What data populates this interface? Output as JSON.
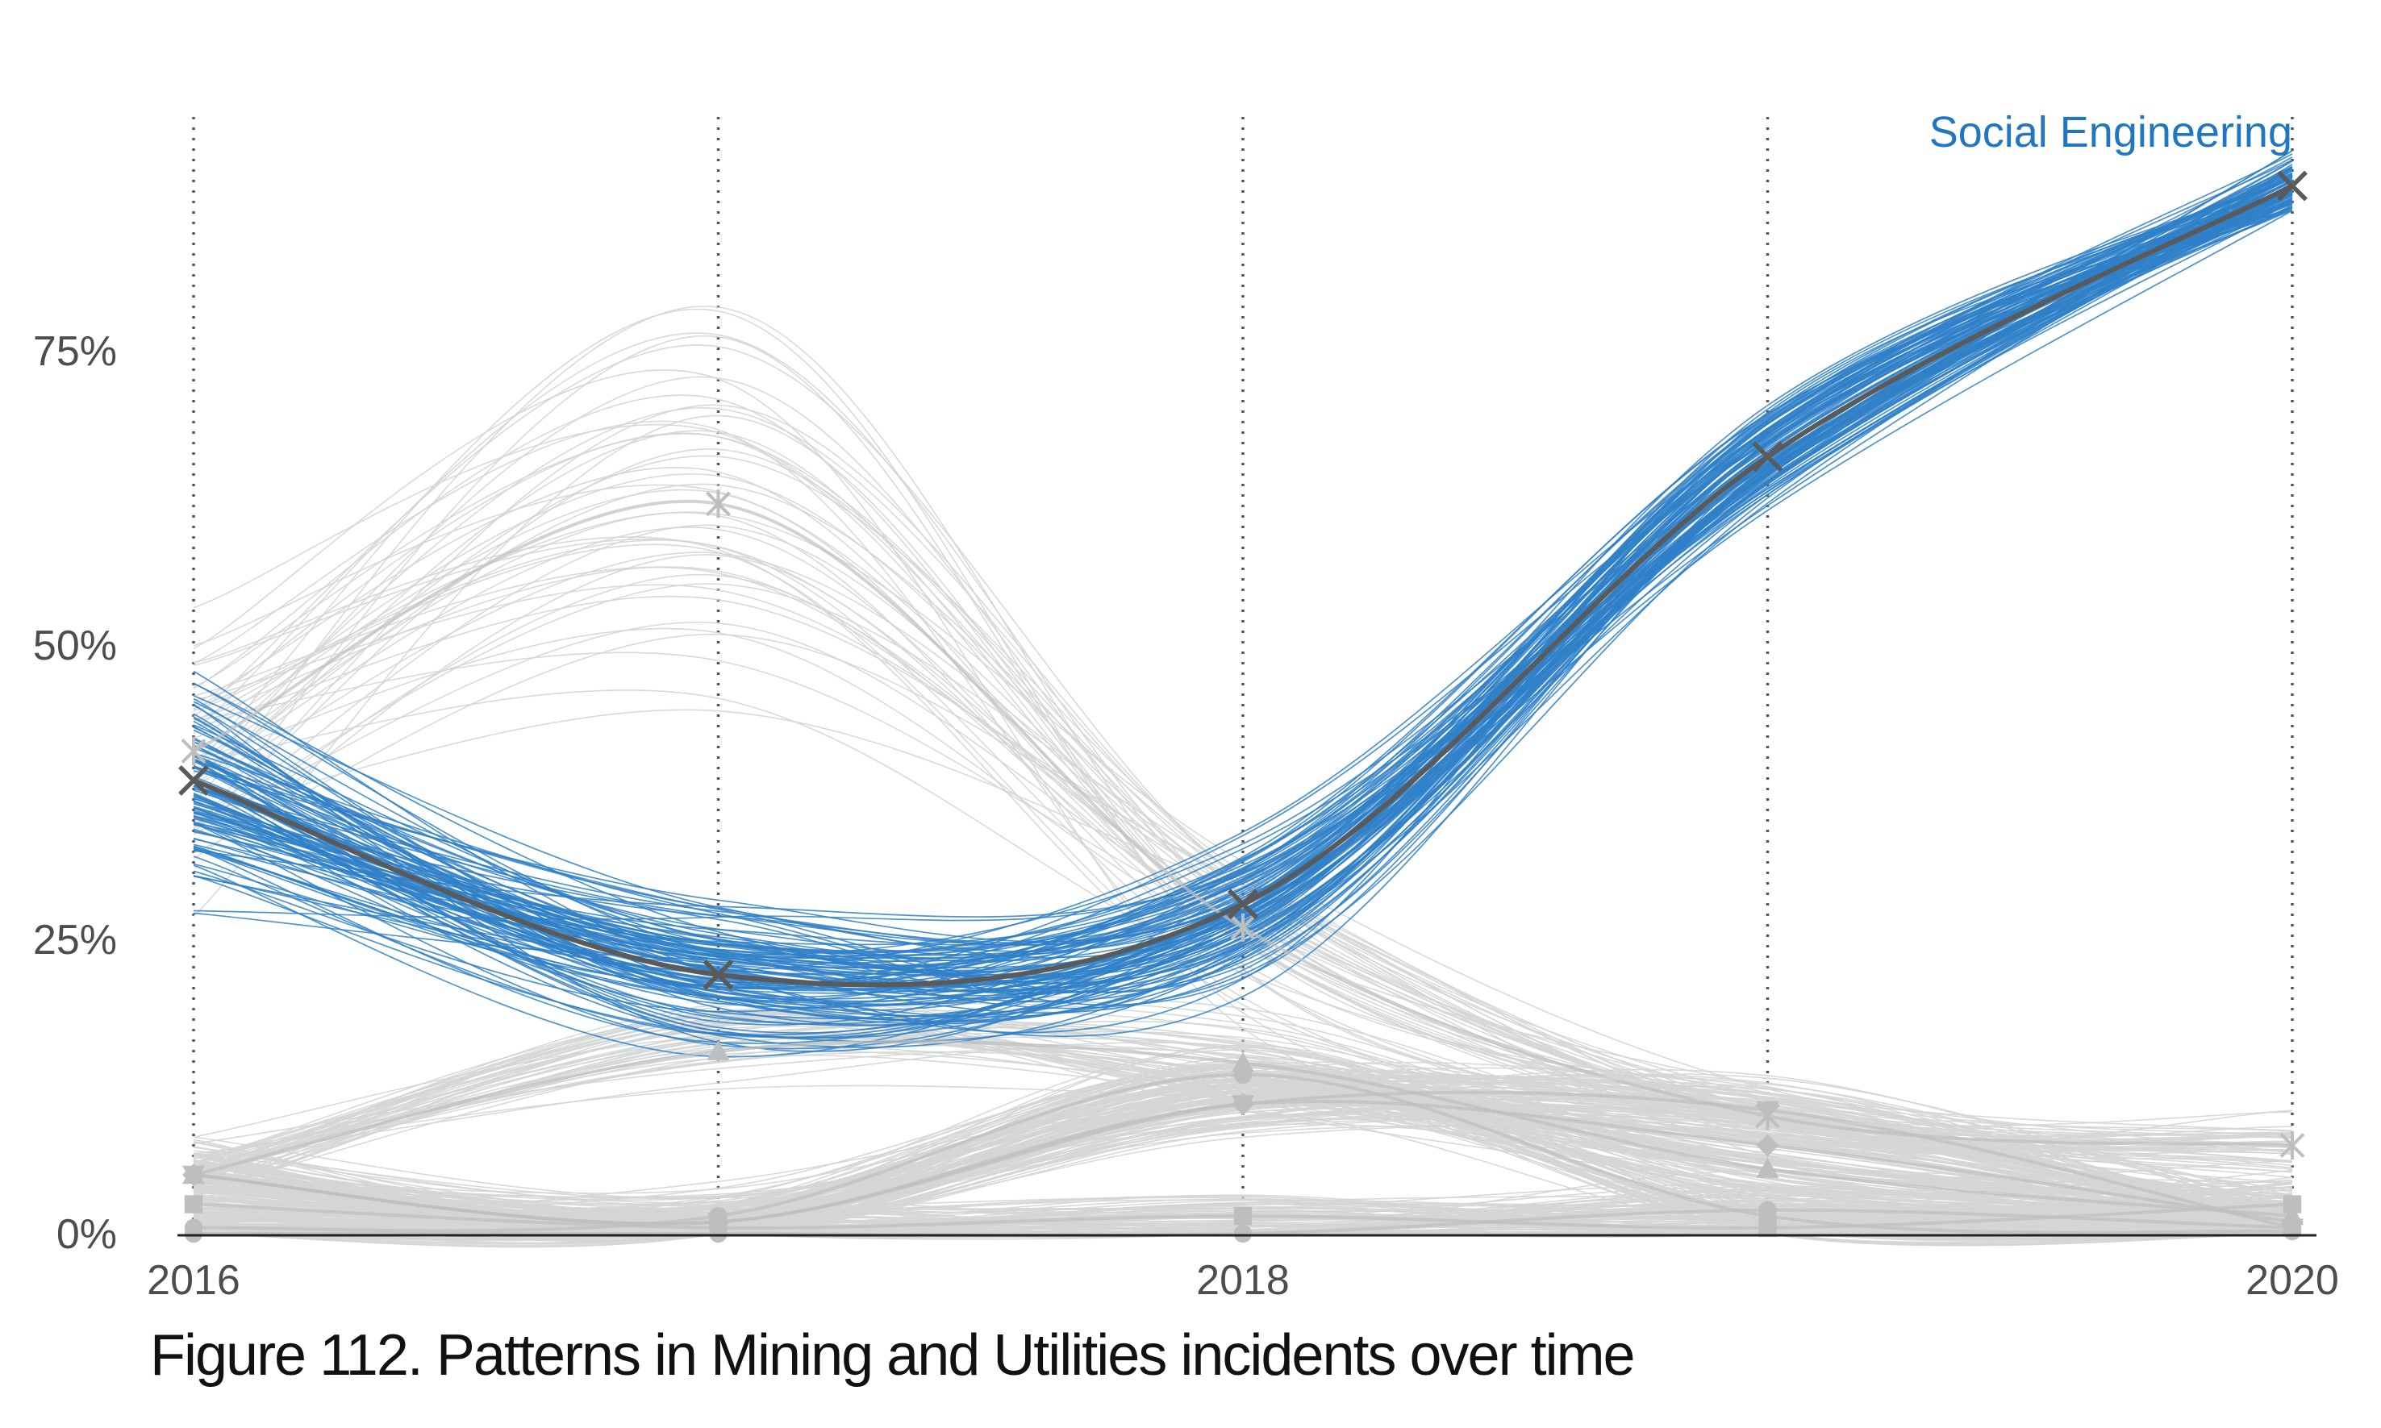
{
  "caption": "Figure 112. Patterns in Mining and Utilities incidents over time",
  "chart_data": {
    "type": "line",
    "title": "",
    "xlabel": "",
    "ylabel": "",
    "x": [
      2016,
      2017,
      2018,
      2019,
      2020
    ],
    "x_tick_labels": [
      "2016",
      "2018",
      "2020"
    ],
    "x_tick_values": [
      2016,
      2018,
      2020
    ],
    "y_tick_labels": [
      "0%",
      "25%",
      "50%",
      "75%"
    ],
    "y_tick_values": [
      0,
      25,
      50,
      75
    ],
    "ylim": [
      0,
      92
    ],
    "grid": "vertical dotted lines at each year",
    "highlight_label": "Social Engineering",
    "series": [
      {
        "name": "Social Engineering",
        "highlight": true,
        "values": [
          38.5,
          22,
          28,
          66,
          89
        ],
        "marker": "x"
      },
      {
        "values": [
          41,
          62,
          26,
          10,
          7.5
        ],
        "marker": "asterisk"
      },
      {
        "values": [
          5,
          15.5,
          14.5,
          5.5,
          1.5
        ],
        "marker": "triangle-up"
      },
      {
        "values": [
          5,
          1,
          11,
          10.5,
          0.5
        ],
        "marker": "triangle-down"
      },
      {
        "values": [
          5,
          1,
          11,
          7.5,
          1
        ],
        "marker": "diamond"
      },
      {
        "values": [
          2.5,
          0.5,
          1.5,
          0.5,
          2.5
        ],
        "marker": "square"
      },
      {
        "values": [
          0,
          0,
          0,
          2,
          0.5
        ],
        "marker": "circle"
      },
      {
        "values": [
          0.5,
          1.5,
          13.5,
          1.5,
          0.2
        ],
        "marker": "circle"
      }
    ]
  },
  "colors": {
    "highlight": "#1f77c4",
    "highlight_bands": "#2f80c8",
    "median": "#5a5a5a",
    "background_bands": "#d4d6d6",
    "background_markers": "#bdbfbf",
    "axis": "#222222",
    "grid": "#555555"
  }
}
